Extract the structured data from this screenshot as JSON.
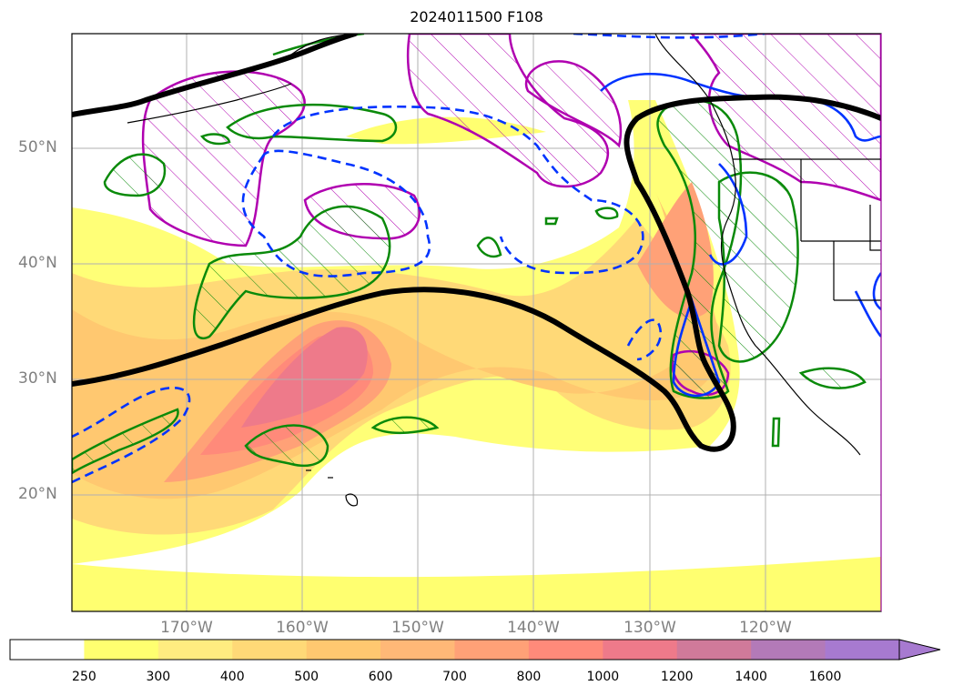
{
  "title": "2024011500 F108",
  "lat_labels": [
    "50°N",
    "40°N",
    "30°N",
    "20°N"
  ],
  "lon_labels": [
    "170°W",
    "160°W",
    "150°W",
    "140°W",
    "130°W",
    "120°W"
  ],
  "colorbar": {
    "ticks": [
      "250",
      "300",
      "400",
      "500",
      "600",
      "700",
      "800",
      "1000",
      "1200",
      "1400",
      "1600"
    ],
    "colors": [
      "#ffffff",
      "#ffff70",
      "#ffec80",
      "#ffd977",
      "#ffc870",
      "#ffb877",
      "#ffa177",
      "#ff8a7a",
      "#ee7a8a",
      "#d07a9a",
      "#b37ab8",
      "#a77ad0"
    ]
  },
  "colors": {
    "jet_contour": "#000000",
    "warm_anomaly": "#0a8a0a",
    "cold_anomaly": "#0033ff",
    "hatched_region": "#b000b0"
  }
}
